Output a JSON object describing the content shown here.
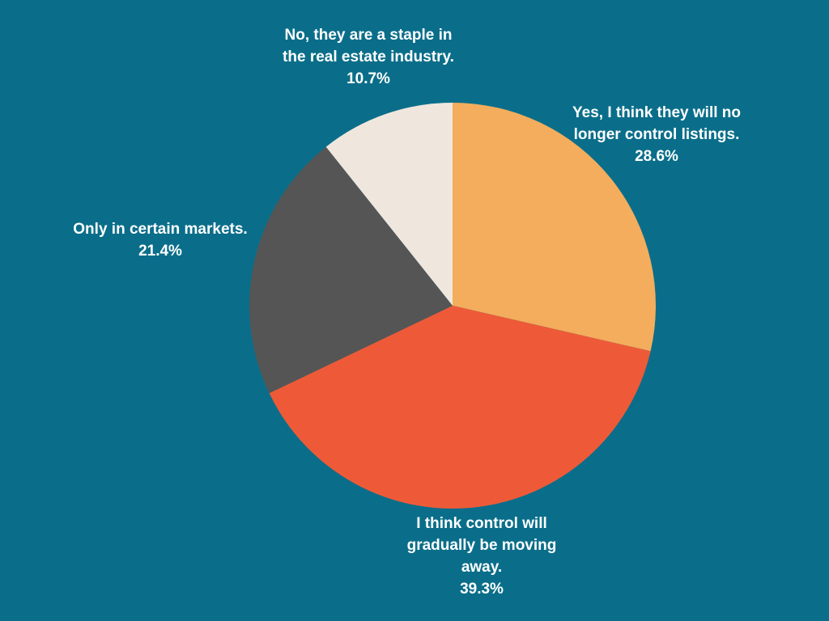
{
  "chart_data": {
    "type": "pie",
    "title": "",
    "start_angle_deg": 0,
    "direction": "clockwise",
    "slices": [
      {
        "label": "Yes, I think they will no longer control listings.",
        "value": 28.6,
        "value_label": "28.6%",
        "color": "#f3ad5c"
      },
      {
        "label": "I think control will gradually be moving away.",
        "value": 39.3,
        "value_label": "39.3%",
        "color": "#ee5a38"
      },
      {
        "label": "Only in certain markets.",
        "value": 21.4,
        "value_label": "21.4%",
        "color": "#555555"
      },
      {
        "label": "No, they are a staple in the real estate industry.",
        "value": 10.7,
        "value_label": "10.7%",
        "color": "#efe7dd"
      }
    ]
  },
  "colors": {
    "background": "#0a6e8a",
    "label_text": "#ffffff"
  }
}
